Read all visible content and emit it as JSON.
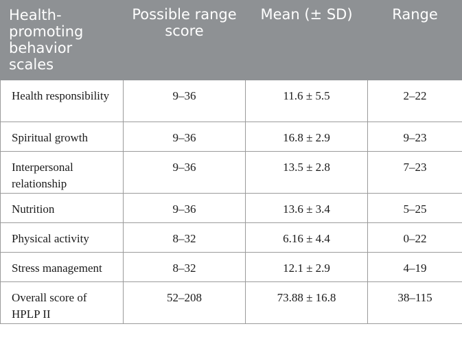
{
  "table": {
    "headers": [
      "Health-promoting behavior scales",
      "Possible range score",
      "Mean (± SD)",
      "Range"
    ],
    "rows": [
      {
        "scale": "Health responsibility",
        "possible": "9–36",
        "mean": "11.6 ± 5.5",
        "range": "2–22"
      },
      {
        "scale": "Spiritual growth",
        "possible": "9–36",
        "mean": "16.8 ± 2.9",
        "range": "9–23"
      },
      {
        "scale": "Interpersonal relationship",
        "possible": "9–36",
        "mean": "13.5 ± 2.8",
        "range": "7–23"
      },
      {
        "scale": "Nutrition",
        "possible": "9–36",
        "mean": "13.6 ± 3.4",
        "range": "5–25"
      },
      {
        "scale": "Physical activity",
        "possible": "8–32",
        "mean": "6.16 ± 4.4",
        "range": "0–22"
      },
      {
        "scale": "Stress management",
        "possible": "8–32",
        "mean": "12.1 ± 2.9",
        "range": "4–19"
      },
      {
        "scale": "Overall score of HPLP II",
        "possible": "52–208",
        "mean": "73.88 ± 16.8",
        "range": "38–115"
      }
    ]
  }
}
